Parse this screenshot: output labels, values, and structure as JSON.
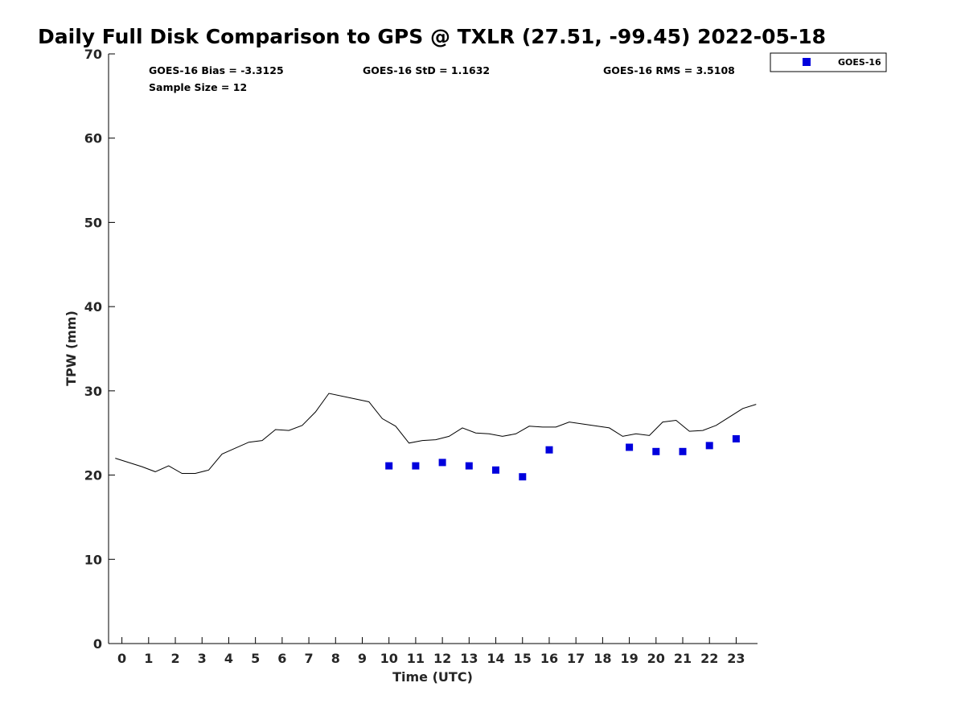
{
  "chart_data": {
    "type": "scatter",
    "title": "Daily Full Disk Comparison to GPS @ TXLR (27.51, -99.45) 2022-05-18",
    "xlabel": "Time (UTC)",
    "ylabel": "TPW (mm)",
    "xlim": [
      -0.5,
      23.8
    ],
    "ylim": [
      0,
      70
    ],
    "x_ticks": [
      0,
      1,
      2,
      3,
      4,
      5,
      6,
      7,
      8,
      9,
      10,
      11,
      12,
      13,
      14,
      15,
      16,
      17,
      18,
      19,
      20,
      21,
      22,
      23
    ],
    "y_ticks": [
      0,
      10,
      20,
      30,
      40,
      50,
      60,
      70
    ],
    "grid": false,
    "legend_position": "top-right",
    "stats": {
      "bias": "GOES-16 Bias = -3.3125",
      "std": "GOES-16 StD = 1.1632",
      "rms": "GOES-16 RMS = 3.5108",
      "sample": "Sample Size = 12"
    },
    "series": [
      {
        "name": "GOES-16",
        "kind": "scatter",
        "marker": "square",
        "color": "#0000dd",
        "x": [
          10,
          11,
          12,
          13,
          14,
          15,
          16,
          19,
          20,
          21,
          22,
          23
        ],
        "y": [
          21.1,
          21.1,
          21.5,
          21.1,
          20.6,
          19.8,
          23.0,
          23.3,
          22.8,
          22.8,
          23.5,
          24.3
        ]
      },
      {
        "kind": "line",
        "color": "#000000",
        "x": [
          -0.25,
          0.25,
          0.75,
          1.25,
          1.75,
          2.25,
          2.75,
          3.25,
          3.75,
          4.25,
          4.75,
          5.25,
          5.75,
          6.25,
          6.75,
          7.25,
          7.75,
          9.25,
          9.75,
          10.25,
          10.75,
          11.25,
          11.75,
          12.25,
          12.75,
          13.25,
          13.75,
          14.25,
          14.75,
          15.25,
          15.75,
          16.25,
          16.75,
          18.25,
          18.75,
          19.25,
          19.75,
          20.25,
          20.75,
          21.25,
          21.75,
          22.25,
          22.75,
          23.25,
          23.75
        ],
        "y": [
          22.0,
          21.5,
          21.0,
          20.4,
          21.1,
          20.2,
          20.2,
          20.6,
          22.5,
          23.2,
          23.9,
          24.1,
          25.4,
          25.3,
          25.9,
          27.5,
          29.7,
          28.7,
          26.7,
          25.8,
          23.8,
          24.1,
          24.2,
          24.6,
          25.6,
          25.0,
          24.9,
          24.6,
          24.9,
          25.8,
          25.7,
          25.7,
          26.3,
          25.6,
          24.6,
          24.9,
          24.7,
          26.3,
          26.5,
          25.2,
          25.3,
          25.9,
          26.9,
          27.9,
          28.4
        ]
      }
    ]
  }
}
